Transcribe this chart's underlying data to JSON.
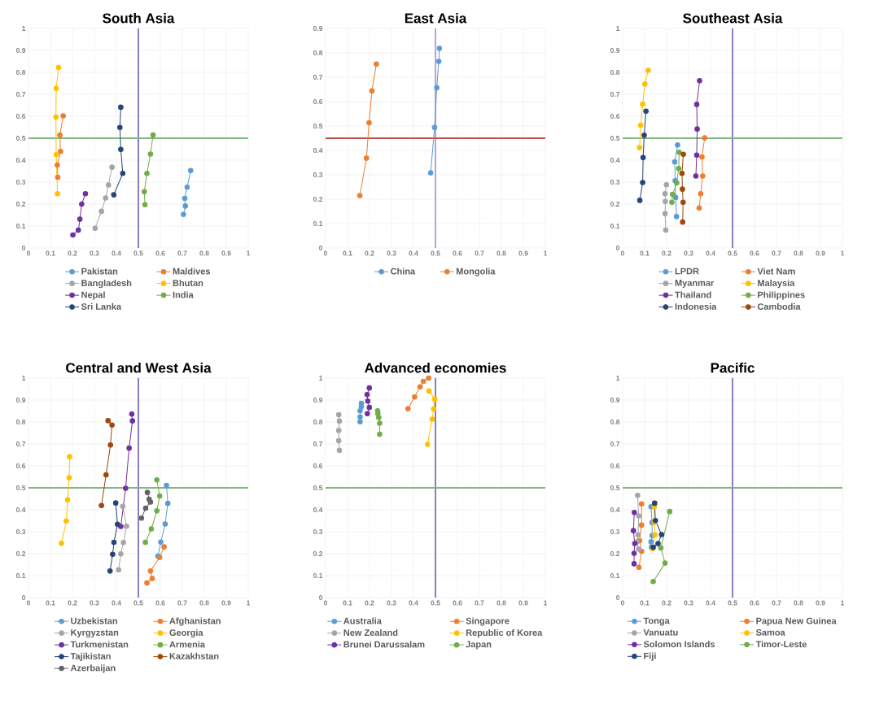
{
  "chart_data": [
    {
      "type": "line",
      "title": "South Asia",
      "xlim": [
        0,
        1
      ],
      "ylim": [
        0,
        1
      ],
      "xticks": [
        0,
        0.1,
        0.2,
        0.3,
        0.4,
        0.5,
        0.6,
        0.7,
        0.8,
        0.9,
        1
      ],
      "yticks": [
        0,
        0.1,
        0.2,
        0.3,
        0.4,
        0.5,
        0.6,
        0.7,
        0.8,
        0.9,
        1
      ],
      "grid": true,
      "legend": "bottom",
      "marker": "circle",
      "ref_lines": [
        {
          "axis": "x",
          "value": 0.5,
          "color": "#8e7cc3"
        },
        {
          "axis": "y",
          "value": 0.5,
          "color": "#7fb77e"
        }
      ],
      "series": [
        {
          "name": "Pakistan",
          "color": "#5b9bd5",
          "x": [
            0.705,
            0.714,
            0.711,
            0.722,
            0.738
          ],
          "values": [
            0.153,
            0.191,
            0.226,
            0.277,
            0.353
          ]
        },
        {
          "name": "Maldives",
          "color": "#ed7d31",
          "x": [
            0.133,
            0.131,
            0.146,
            0.143,
            0.158
          ],
          "values": [
            0.322,
            0.378,
            0.44,
            0.515,
            0.602
          ]
        },
        {
          "name": "Bangladesh",
          "color": "#a5a5a5",
          "x": [
            0.303,
            0.332,
            0.351,
            0.364,
            0.38
          ],
          "values": [
            0.09,
            0.167,
            0.228,
            0.287,
            0.368
          ]
        },
        {
          "name": "Bhutan",
          "color": "#ffc000",
          "x": [
            0.132,
            0.126,
            0.125,
            0.126,
            0.137
          ],
          "values": [
            0.247,
            0.425,
            0.596,
            0.727,
            0.822
          ]
        },
        {
          "name": "Nepal",
          "color": "#7030a0",
          "x": [
            0.202,
            0.227,
            0.234,
            0.242,
            0.259
          ],
          "values": [
            0.059,
            0.081,
            0.131,
            0.2,
            0.247
          ]
        },
        {
          "name": "India",
          "color": "#70ad47",
          "x": [
            0.53,
            0.527,
            0.539,
            0.555,
            0.567
          ],
          "values": [
            0.197,
            0.256,
            0.34,
            0.428,
            0.515
          ]
        },
        {
          "name": "Sri Lanka",
          "color": "#264478",
          "x": [
            0.388,
            0.429,
            0.42,
            0.416,
            0.42
          ],
          "values": [
            0.242,
            0.34,
            0.449,
            0.549,
            0.641
          ]
        }
      ]
    },
    {
      "type": "line",
      "title": "East Asia",
      "xlim": [
        0,
        1
      ],
      "ylim": [
        0,
        0.9
      ],
      "xticks": [
        0,
        0.1,
        0.2,
        0.3,
        0.4,
        0.5,
        0.6,
        0.7,
        0.8,
        0.9,
        1
      ],
      "yticks": [
        0,
        0.1,
        0.2,
        0.3,
        0.4,
        0.5,
        0.6,
        0.7,
        0.8,
        0.9
      ],
      "grid": true,
      "legend": "bottom",
      "marker": "circle",
      "ref_lines": [
        {
          "axis": "x",
          "value": 0.5,
          "color": "#b4a7d6"
        },
        {
          "axis": "y",
          "value": 0.45,
          "color": "#c0504d"
        }
      ],
      "series": [
        {
          "name": "China",
          "color": "#5b9bd5",
          "x": [
            0.478,
            0.496,
            0.506,
            0.515,
            0.518
          ],
          "values": [
            0.308,
            0.494,
            0.657,
            0.765,
            0.818
          ]
        },
        {
          "name": "Mongolia",
          "color": "#ed7d31",
          "x": [
            0.156,
            0.186,
            0.198,
            0.211,
            0.231
          ],
          "values": [
            0.215,
            0.368,
            0.513,
            0.644,
            0.754
          ]
        }
      ]
    },
    {
      "type": "line",
      "title": "Southeast Asia",
      "xlim": [
        0,
        1
      ],
      "ylim": [
        0,
        1
      ],
      "xticks": [
        0,
        0.1,
        0.2,
        0.3,
        0.4,
        0.5,
        0.6,
        0.7,
        0.8,
        0.9,
        1
      ],
      "yticks": [
        0,
        0.1,
        0.2,
        0.3,
        0.4,
        0.5,
        0.6,
        0.7,
        0.8,
        0.9,
        1
      ],
      "grid": true,
      "legend": "bottom",
      "marker": "circle",
      "ref_lines": [
        {
          "axis": "x",
          "value": 0.5,
          "color": "#8e7cc3"
        },
        {
          "axis": "y",
          "value": 0.5,
          "color": "#7fb77e"
        }
      ],
      "series": [
        {
          "name": "LPDR",
          "color": "#5b9bd5",
          "x": [
            0.245,
            0.241,
            0.239,
            0.237,
            0.25
          ],
          "values": [
            0.143,
            0.23,
            0.306,
            0.392,
            0.469
          ]
        },
        {
          "name": "Viet Nam",
          "color": "#ed7d31",
          "x": [
            0.348,
            0.355,
            0.364,
            0.361,
            0.373
          ],
          "values": [
            0.182,
            0.247,
            0.328,
            0.415,
            0.502
          ]
        },
        {
          "name": "Myanmar",
          "color": "#a5a5a5",
          "x": [
            0.196,
            0.193,
            0.194,
            0.193,
            0.199
          ],
          "values": [
            0.081,
            0.156,
            0.212,
            0.247,
            0.288
          ]
        },
        {
          "name": "Malaysia",
          "color": "#ffc000",
          "x": [
            0.077,
            0.082,
            0.091,
            0.101,
            0.116
          ],
          "values": [
            0.457,
            0.559,
            0.655,
            0.747,
            0.809
          ]
        },
        {
          "name": "Thailand",
          "color": "#7030a0",
          "x": [
            0.333,
            0.337,
            0.339,
            0.337,
            0.35
          ],
          "values": [
            0.328,
            0.423,
            0.542,
            0.654,
            0.762
          ]
        },
        {
          "name": "Philippines",
          "color": "#70ad47",
          "x": [
            0.224,
            0.227,
            0.246,
            0.255,
            0.257
          ],
          "values": [
            0.208,
            0.244,
            0.296,
            0.362,
            0.436
          ]
        },
        {
          "name": "Indonesia",
          "color": "#264478",
          "x": [
            0.078,
            0.091,
            0.093,
            0.098,
            0.106
          ],
          "values": [
            0.217,
            0.298,
            0.412,
            0.514,
            0.623
          ]
        },
        {
          "name": "Cambodia",
          "color": "#9e480e",
          "x": [
            0.273,
            0.275,
            0.272,
            0.27,
            0.276
          ],
          "values": [
            0.118,
            0.208,
            0.268,
            0.34,
            0.427
          ]
        }
      ]
    },
    {
      "type": "line",
      "title": "Central and West Asia",
      "xlim": [
        0,
        1
      ],
      "ylim": [
        0,
        1
      ],
      "xticks": [
        0,
        0.1,
        0.2,
        0.3,
        0.4,
        0.5,
        0.6,
        0.7,
        0.8,
        0.9,
        1
      ],
      "yticks": [
        0,
        0.1,
        0.2,
        0.3,
        0.4,
        0.5,
        0.6,
        0.7,
        0.8,
        0.9,
        1
      ],
      "grid": true,
      "legend": "bottom",
      "marker": "circle",
      "ref_lines": [
        {
          "axis": "x",
          "value": 0.5,
          "color": "#8e7cc3"
        },
        {
          "axis": "y",
          "value": 0.5,
          "color": "#7fb77e"
        }
      ],
      "series": [
        {
          "name": "Uzbekistan",
          "color": "#5b9bd5",
          "x": [
            0.589,
            0.602,
            0.622,
            0.634,
            0.628
          ],
          "values": [
            0.189,
            0.253,
            0.335,
            0.429,
            0.511
          ]
        },
        {
          "name": "Afghanistan",
          "color": "#ed7d31",
          "x": [
            0.539,
            0.563,
            0.555,
            0.597,
            0.617
          ],
          "values": [
            0.067,
            0.087,
            0.121,
            0.183,
            0.231
          ]
        },
        {
          "name": "Kyrgyzstan",
          "color": "#a5a5a5",
          "x": [
            0.41,
            0.42,
            0.432,
            0.446,
            0.429
          ],
          "values": [
            0.127,
            0.199,
            0.251,
            0.325,
            0.416
          ]
        },
        {
          "name": "Georgia",
          "color": "#ffc000",
          "x": [
            0.15,
            0.172,
            0.178,
            0.185,
            0.187
          ],
          "values": [
            0.247,
            0.349,
            0.445,
            0.546,
            0.642
          ]
        },
        {
          "name": "Turkmenistan",
          "color": "#7030a0",
          "x": [
            0.42,
            0.442,
            0.458,
            0.473,
            0.47
          ],
          "values": [
            0.324,
            0.498,
            0.681,
            0.805,
            0.836
          ]
        },
        {
          "name": "Armenia",
          "color": "#70ad47",
          "x": [
            0.532,
            0.559,
            0.584,
            0.597,
            0.584
          ],
          "values": [
            0.252,
            0.313,
            0.395,
            0.463,
            0.536
          ]
        },
        {
          "name": "Tajikistan",
          "color": "#264478",
          "x": [
            0.371,
            0.383,
            0.389,
            0.405,
            0.397
          ],
          "values": [
            0.121,
            0.197,
            0.252,
            0.334,
            0.431
          ]
        },
        {
          "name": "Kazakhstan",
          "color": "#9e480e",
          "x": [
            0.332,
            0.353,
            0.373,
            0.38,
            0.362
          ],
          "values": [
            0.419,
            0.559,
            0.695,
            0.786,
            0.806
          ]
        },
        {
          "name": "Azerbaijan",
          "color": "#636363",
          "x": [
            0.514,
            0.533,
            0.555,
            0.549,
            0.541
          ],
          "values": [
            0.362,
            0.407,
            0.435,
            0.448,
            0.479
          ]
        }
      ]
    },
    {
      "type": "line",
      "title": "Advanced economies",
      "xlim": [
        0,
        1
      ],
      "ylim": [
        0,
        1
      ],
      "xticks": [
        0,
        0.1,
        0.2,
        0.3,
        0.4,
        0.5,
        0.6,
        0.7,
        0.8,
        0.9,
        1
      ],
      "yticks": [
        0,
        0.1,
        0.2,
        0.3,
        0.4,
        0.5,
        0.6,
        0.7,
        0.8,
        0.9,
        1
      ],
      "grid": true,
      "legend": "bottom",
      "marker": "circle",
      "ref_lines": [
        {
          "axis": "x",
          "value": 0.5,
          "color": "#8e7cc3"
        },
        {
          "axis": "y",
          "value": 0.5,
          "color": "#7fb77e"
        }
      ],
      "series": [
        {
          "name": "Australia",
          "color": "#5b9bd5",
          "x": [
            0.157,
            0.157,
            0.157,
            0.163,
            0.163
          ],
          "values": [
            0.801,
            0.823,
            0.851,
            0.869,
            0.885
          ]
        },
        {
          "name": "Singapore",
          "color": "#ed7d31",
          "x": [
            0.375,
            0.405,
            0.43,
            0.445,
            0.469
          ],
          "values": [
            0.86,
            0.914,
            0.96,
            0.985,
            1.0
          ]
        },
        {
          "name": "New Zealand",
          "color": "#a5a5a5",
          "x": [
            0.063,
            0.06,
            0.06,
            0.063,
            0.06
          ],
          "values": [
            0.67,
            0.715,
            0.761,
            0.804,
            0.833
          ]
        },
        {
          "name": "Republic of Korea",
          "color": "#ffc000",
          "x": [
            0.464,
            0.485,
            0.492,
            0.497,
            0.47
          ],
          "values": [
            0.698,
            0.813,
            0.859,
            0.904,
            0.941
          ]
        },
        {
          "name": "Brunei Darussalam",
          "color": "#7030a0",
          "x": [
            0.19,
            0.199,
            0.192,
            0.189,
            0.199
          ],
          "values": [
            0.838,
            0.866,
            0.895,
            0.925,
            0.955
          ]
        },
        {
          "name": "Japan",
          "color": "#70ad47",
          "x": [
            0.246,
            0.246,
            0.242,
            0.238,
            0.237
          ],
          "values": [
            0.744,
            0.794,
            0.82,
            0.838,
            0.851
          ]
        }
      ]
    },
    {
      "type": "line",
      "title": "Pacific",
      "xlim": [
        0,
        1
      ],
      "ylim": [
        0,
        1
      ],
      "xticks": [
        0,
        0.1,
        0.2,
        0.3,
        0.4,
        0.5,
        0.6,
        0.7,
        0.8,
        0.9,
        1
      ],
      "yticks": [
        0,
        0.1,
        0.2,
        0.3,
        0.4,
        0.5,
        0.6,
        0.7,
        0.8,
        0.9,
        1
      ],
      "grid": true,
      "legend": "bottom",
      "marker": "circle",
      "ref_lines": [
        {
          "axis": "x",
          "value": 0.5,
          "color": "#8e7cc3"
        },
        {
          "axis": "y",
          "value": 0.5,
          "color": "#7fb77e"
        }
      ],
      "series": [
        {
          "name": "Tonga",
          "color": "#5b9bd5",
          "x": [
            0.131,
            0.129,
            0.134,
            0.134,
            0.129
          ],
          "values": [
            0.229,
            0.254,
            0.282,
            0.342,
            0.414
          ]
        },
        {
          "name": "Papua New Guinea",
          "color": "#ed7d31",
          "x": [
            0.074,
            0.086,
            0.077,
            0.086,
            0.086
          ],
          "values": [
            0.138,
            0.211,
            0.259,
            0.33,
            0.427
          ]
        },
        {
          "name": "Vanuatu",
          "color": "#a5a5a5",
          "x": [
            0.073,
            0.065,
            0.07,
            0.073,
            0.068
          ],
          "values": [
            0.221,
            0.254,
            0.286,
            0.372,
            0.466
          ]
        },
        {
          "name": "Samoa",
          "color": "#ffc000",
          "x": [
            0.136,
            0.147,
            0.144,
            0.144,
            0.147
          ],
          "values": [
            0.223,
            0.286,
            0.342,
            0.414,
            0.43
          ]
        },
        {
          "name": "Solomon Islands",
          "color": "#7030a0",
          "x": [
            0.052,
            0.052,
            0.055,
            0.049,
            0.053
          ],
          "values": [
            0.154,
            0.202,
            0.246,
            0.305,
            0.388
          ]
        },
        {
          "name": "Timor-Leste",
          "color": "#70ad47",
          "x": [
            0.139,
            0.193,
            0.174,
            0.214
          ],
          "values": [
            0.073,
            0.157,
            0.226,
            0.392
          ]
        },
        {
          "name": "Fiji",
          "color": "#264478",
          "x": [
            0.139,
            0.161,
            0.177,
            0.149,
            0.145
          ],
          "values": [
            0.229,
            0.246,
            0.287,
            0.351,
            0.43
          ]
        }
      ]
    }
  ]
}
